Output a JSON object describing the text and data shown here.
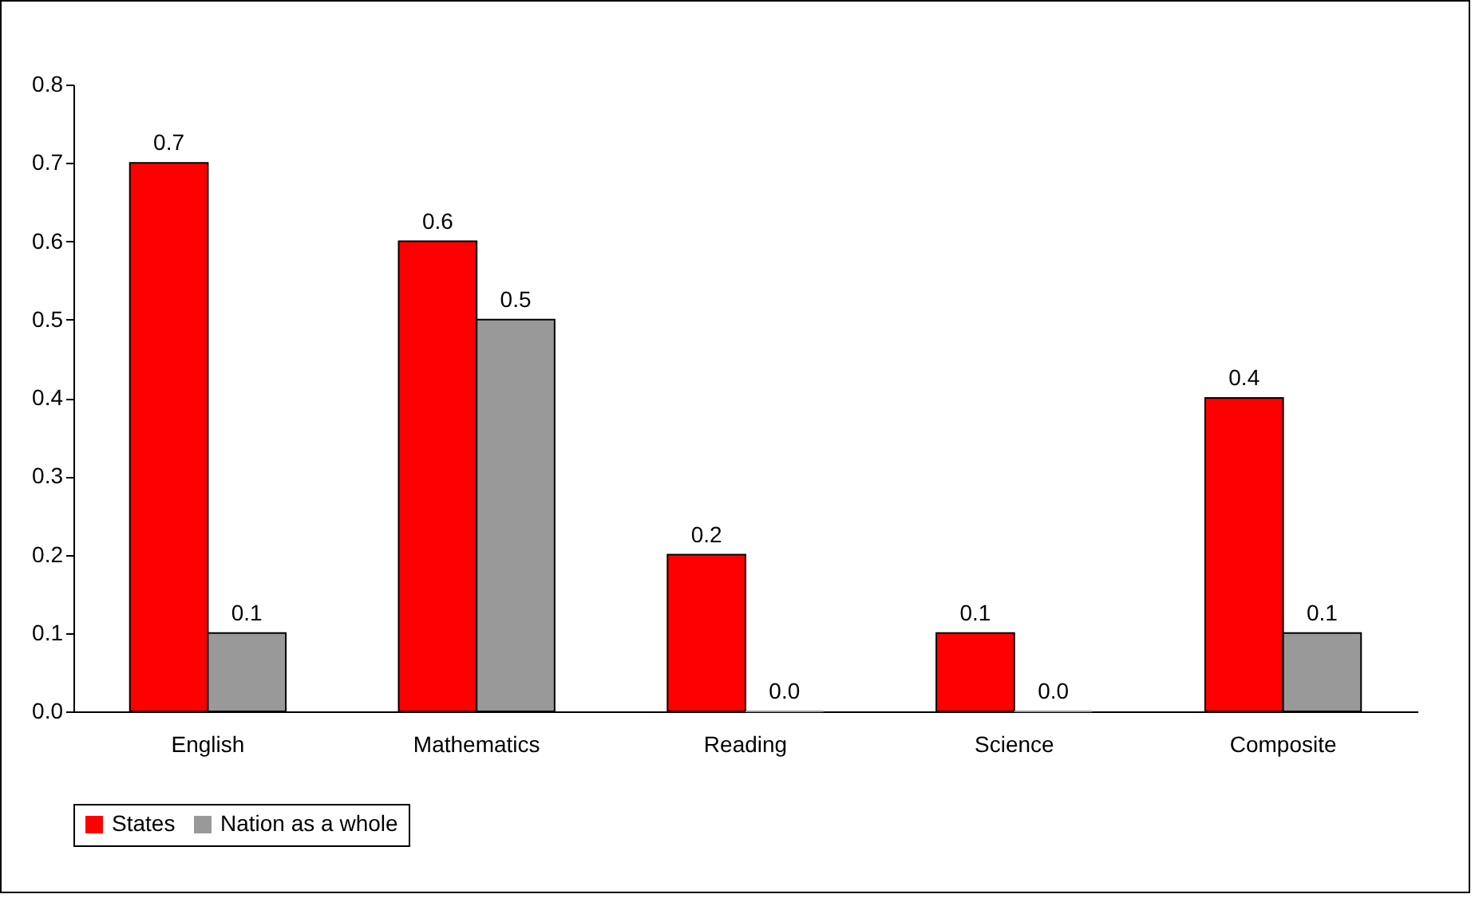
{
  "chart_data": {
    "type": "bar",
    "categories": [
      "English",
      "Mathematics",
      "Reading",
      "Science",
      "Composite"
    ],
    "series": [
      {
        "name": "States",
        "color": "#ff0000",
        "values": [
          0.7,
          0.6,
          0.2,
          0.1,
          0.4
        ],
        "value_labels": [
          "0.7",
          "0.6",
          "0.2",
          "0.1",
          "0.4"
        ]
      },
      {
        "name": "Nation as a whole",
        "color": "#999999",
        "values": [
          0.1,
          0.5,
          0.0,
          0.0,
          0.1
        ],
        "value_labels": [
          "0.1",
          "0.5",
          "0.0",
          "0.0",
          "0.1"
        ]
      }
    ],
    "ylim": [
      0,
      0.8
    ],
    "yticks": [
      {
        "value": 0,
        "label": "0.0"
      },
      0.1,
      0.2,
      0.3,
      0.4,
      0.5,
      0.6,
      0.7,
      0.8
    ],
    "legend": "bottom"
  }
}
